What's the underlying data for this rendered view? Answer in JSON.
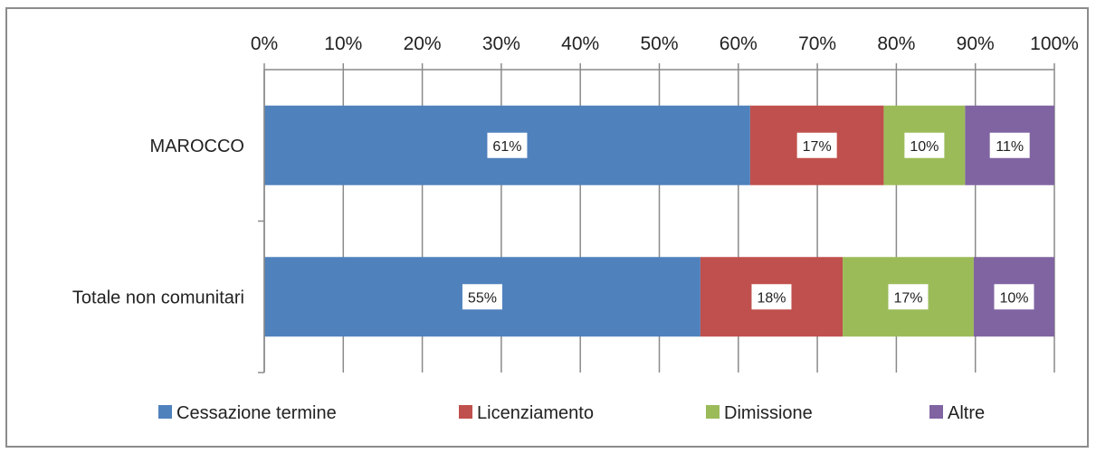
{
  "chart_data": {
    "type": "bar",
    "orientation": "horizontal",
    "stacked": true,
    "percent_stacked": true,
    "categories": [
      "MAROCCO",
      "Totale non comunitari"
    ],
    "series": [
      {
        "name": "Cessazione termine",
        "values": [
          61.5,
          55.2
        ],
        "labels": [
          "61%",
          "55%"
        ],
        "color": "#4f81bd"
      },
      {
        "name": "Licenziamento",
        "values": [
          16.9,
          18.0
        ],
        "labels": [
          "17%",
          "18%"
        ],
        "color": "#c0504d"
      },
      {
        "name": "Dimissione",
        "values": [
          10.3,
          16.6
        ],
        "labels": [
          "10%",
          "17%"
        ],
        "color": "#9bbb59"
      },
      {
        "name": "Altre",
        "values": [
          11.3,
          10.2
        ],
        "labels": [
          "11%",
          "10%"
        ],
        "color": "#8064a2"
      }
    ],
    "x_ticks": [
      "0%",
      "10%",
      "20%",
      "30%",
      "40%",
      "50%",
      "60%",
      "70%",
      "80%",
      "90%",
      "100%"
    ],
    "xlim": [
      0,
      100
    ],
    "x_axis_position": "top",
    "grid": true,
    "legend": "bottom"
  }
}
